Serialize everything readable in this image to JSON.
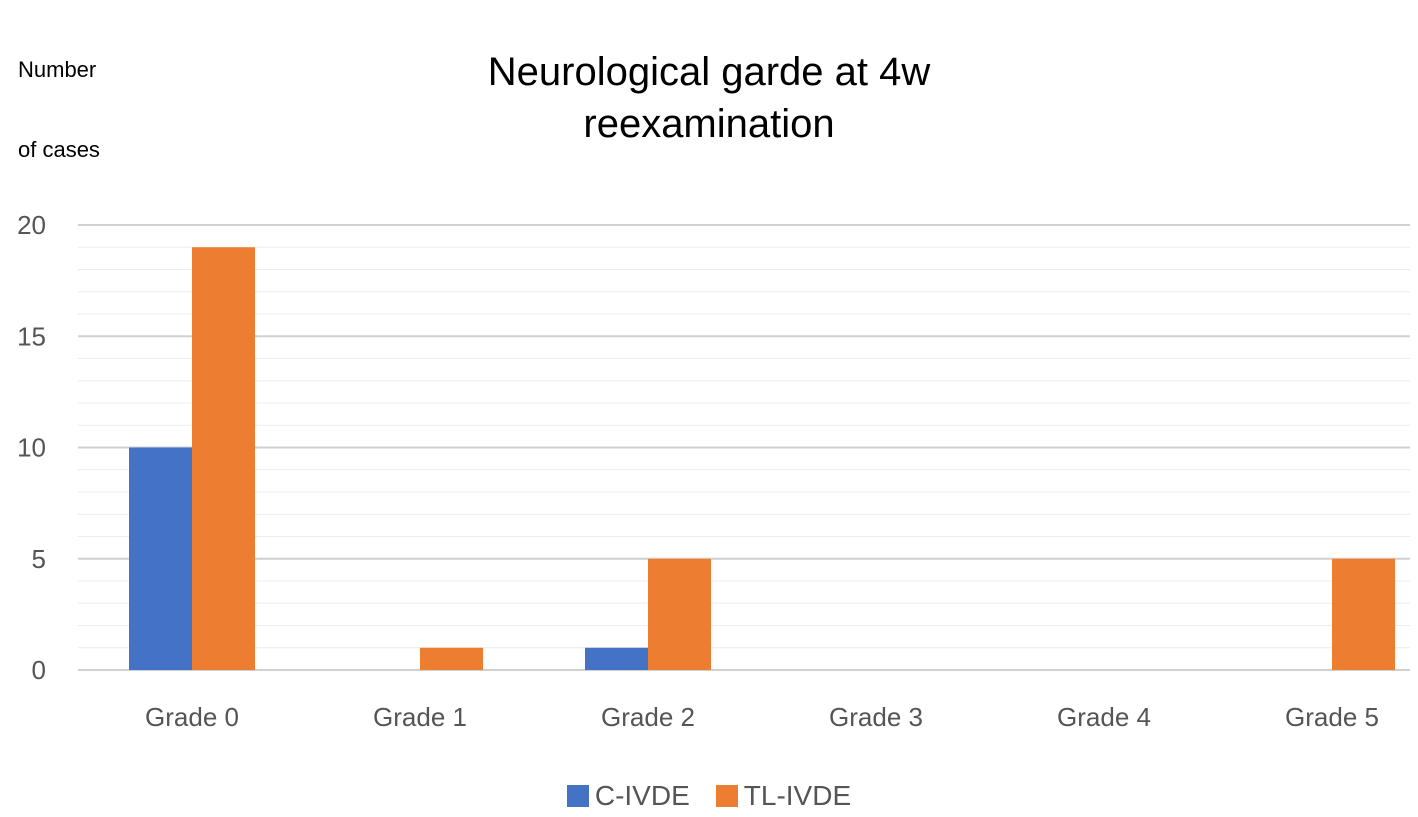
{
  "chart_data": {
    "type": "bar",
    "title": "Neurological garde at 4w reexamination",
    "title_lines": [
      "Neurological garde at 4w",
      "reexamination"
    ],
    "ylabel": "Number of cases",
    "ylabel_lines": [
      "Number",
      "of cases"
    ],
    "xlabel": "",
    "categories": [
      "Grade 0",
      "Grade 1",
      "Grade 2",
      "Grade 3",
      "Grade 4",
      "Grade 5"
    ],
    "series": [
      {
        "name": "C-IVDE",
        "color": "#4472c4",
        "values": [
          10,
          0,
          1,
          0,
          0,
          0
        ]
      },
      {
        "name": "TL-IVDE",
        "color": "#ed7d31",
        "values": [
          19,
          1,
          5,
          0,
          0,
          5
        ]
      }
    ],
    "ylim": [
      0,
      20
    ],
    "yticks": [
      0,
      5,
      10,
      15,
      20
    ],
    "grid": true,
    "legend_position": "bottom"
  }
}
